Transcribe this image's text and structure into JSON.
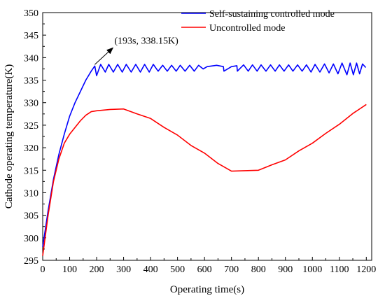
{
  "chart_data": {
    "type": "line",
    "xlabel": "Operating time(s)",
    "ylabel": "Cathode operating temperature(K)",
    "xlim": [
      0,
      1220
    ],
    "ylim": [
      295,
      350
    ],
    "xticks": [
      0,
      100,
      200,
      300,
      400,
      500,
      600,
      700,
      800,
      900,
      1000,
      1100,
      1200
    ],
    "yticks": [
      295,
      300,
      305,
      310,
      315,
      320,
      325,
      330,
      335,
      340,
      345,
      350
    ],
    "grid": false,
    "legend_position": "top-right",
    "series": [
      {
        "name": "Self-sustaining controlled mode",
        "color": "#0000ff",
        "x": [
          0,
          20,
          40,
          60,
          80,
          100,
          120,
          140,
          160,
          180,
          193,
          200,
          215,
          232,
          245,
          262,
          278,
          295,
          310,
          328,
          345,
          362,
          378,
          395,
          410,
          428,
          445,
          462,
          478,
          495,
          510,
          528,
          545,
          562,
          578,
          595,
          610,
          645,
          670,
          672,
          700,
          720,
          722,
          745,
          762,
          778,
          795,
          810,
          828,
          845,
          862,
          878,
          895,
          912,
          928,
          945,
          962,
          978,
          995,
          1010,
          1028,
          1045,
          1062,
          1078,
          1095,
          1110,
          1128,
          1140,
          1152,
          1164,
          1175,
          1186,
          1198
        ],
        "y": [
          298.0,
          306.0,
          313.0,
          318.5,
          323.0,
          327.0,
          330.0,
          332.5,
          335.0,
          337.0,
          338.15,
          336.0,
          338.5,
          336.8,
          338.5,
          336.8,
          338.5,
          336.8,
          338.5,
          336.8,
          338.5,
          336.8,
          338.5,
          336.8,
          338.5,
          337.0,
          338.3,
          337.0,
          338.3,
          337.0,
          338.3,
          337.0,
          338.3,
          337.0,
          338.3,
          337.5,
          338.0,
          338.3,
          338.0,
          337.0,
          338.0,
          338.2,
          337.0,
          338.4,
          337.0,
          338.4,
          337.0,
          338.4,
          337.0,
          338.4,
          337.0,
          338.4,
          337.0,
          338.4,
          337.0,
          338.4,
          337.0,
          338.4,
          336.8,
          338.5,
          336.8,
          338.6,
          336.6,
          338.6,
          336.4,
          338.8,
          336.2,
          338.8,
          336.2,
          338.8,
          336.4,
          338.6,
          337.8
        ]
      },
      {
        "name": "Uncontrolled mode",
        "color": "#ff0000",
        "x": [
          0,
          20,
          40,
          60,
          80,
          100,
          120,
          140,
          160,
          180,
          200,
          250,
          300,
          350,
          400,
          450,
          500,
          550,
          600,
          650,
          700,
          750,
          800,
          850,
          900,
          950,
          1000,
          1050,
          1100,
          1150,
          1200
        ],
        "y": [
          296.0,
          305.0,
          312.5,
          317.5,
          321.0,
          323.0,
          324.5,
          326.0,
          327.2,
          328.0,
          328.2,
          328.5,
          328.6,
          327.5,
          326.5,
          324.5,
          322.8,
          320.5,
          318.8,
          316.5,
          314.8,
          314.9,
          315.0,
          316.2,
          317.3,
          319.3,
          321.0,
          323.2,
          325.2,
          327.6,
          329.6
        ]
      }
    ],
    "annotations": [
      {
        "text": "(193s, 338.15K)",
        "x": 193,
        "y": 338.15
      }
    ]
  }
}
